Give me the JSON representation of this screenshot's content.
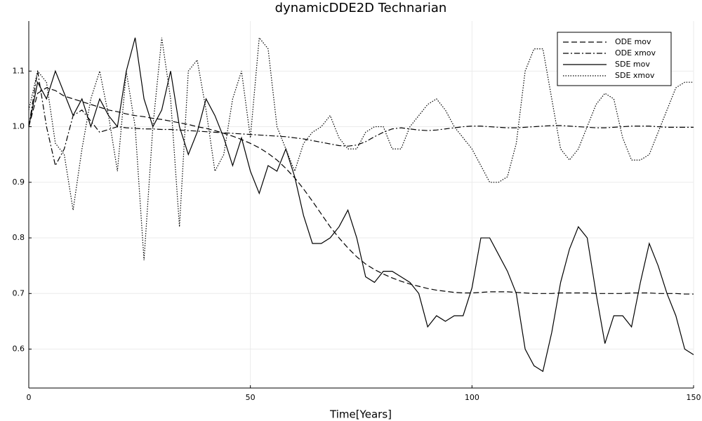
{
  "chart_data": {
    "type": "line",
    "title": "dynamicDDE2D Technarian",
    "x_label": "Time[Years]",
    "x": [
      0,
      2,
      4,
      6,
      8,
      10,
      12,
      14,
      16,
      18,
      20,
      22,
      24,
      26,
      28,
      30,
      32,
      34,
      36,
      38,
      40,
      42,
      44,
      46,
      48,
      50,
      52,
      54,
      56,
      58,
      60,
      62,
      64,
      66,
      68,
      70,
      72,
      74,
      76,
      78,
      80,
      82,
      84,
      86,
      88,
      90,
      92,
      94,
      96,
      98,
      100,
      102,
      104,
      106,
      108,
      110,
      112,
      114,
      116,
      118,
      120,
      122,
      124,
      126,
      128,
      130,
      132,
      134,
      136,
      138,
      140,
      142,
      144,
      146,
      148,
      150
    ],
    "series": [
      {
        "name": "ODE mov",
        "color": "#000000",
        "style": "dashed",
        "values": [
          1.0,
          1.06,
          1.07,
          1.065,
          1.055,
          1.05,
          1.045,
          1.04,
          1.035,
          1.03,
          1.027,
          1.023,
          1.02,
          1.018,
          1.015,
          1.013,
          1.01,
          1.007,
          1.004,
          1.0,
          0.997,
          0.993,
          0.988,
          0.983,
          0.977,
          0.97,
          0.962,
          0.952,
          0.94,
          0.925,
          0.908,
          0.888,
          0.866,
          0.843,
          0.82,
          0.8,
          0.782,
          0.766,
          0.753,
          0.743,
          0.735,
          0.728,
          0.722,
          0.717,
          0.713,
          0.709,
          0.706,
          0.704,
          0.702,
          0.701,
          0.701,
          0.702,
          0.703,
          0.703,
          0.703,
          0.702,
          0.701,
          0.7,
          0.7,
          0.7,
          0.701,
          0.701,
          0.701,
          0.701,
          0.7,
          0.7,
          0.7,
          0.7,
          0.701,
          0.701,
          0.701,
          0.7,
          0.7,
          0.7,
          0.699,
          0.699
        ]
      },
      {
        "name": "ODE xmov",
        "color": "#000000",
        "style": "dashdot",
        "values": [
          1.0,
          1.1,
          1.0,
          0.93,
          0.96,
          1.02,
          1.03,
          1.01,
          0.99,
          0.995,
          1.0,
          0.998,
          0.997,
          0.996,
          0.996,
          0.995,
          0.995,
          0.994,
          0.993,
          0.992,
          0.991,
          0.99,
          0.989,
          0.988,
          0.987,
          0.986,
          0.985,
          0.984,
          0.983,
          0.982,
          0.98,
          0.978,
          0.975,
          0.972,
          0.969,
          0.966,
          0.965,
          0.967,
          0.973,
          0.982,
          0.99,
          0.996,
          0.998,
          0.996,
          0.994,
          0.993,
          0.994,
          0.996,
          0.998,
          1.0,
          1.001,
          1.001,
          1.0,
          0.999,
          0.998,
          0.998,
          0.999,
          1.0,
          1.001,
          1.002,
          1.002,
          1.001,
          1.0,
          0.999,
          0.998,
          0.998,
          0.999,
          1.0,
          1.001,
          1.001,
          1.001,
          1.0,
          0.999,
          0.999,
          0.999,
          0.999
        ]
      },
      {
        "name": "SDE mov",
        "color": "#000000",
        "style": "solid",
        "values": [
          1.0,
          1.08,
          1.05,
          1.1,
          1.06,
          1.02,
          1.05,
          1.0,
          1.05,
          1.02,
          1.0,
          1.1,
          1.16,
          1.05,
          1.0,
          1.03,
          1.1,
          1.0,
          0.95,
          0.99,
          1.05,
          1.02,
          0.98,
          0.93,
          0.98,
          0.92,
          0.88,
          0.93,
          0.92,
          0.96,
          0.91,
          0.84,
          0.79,
          0.79,
          0.8,
          0.82,
          0.85,
          0.8,
          0.73,
          0.72,
          0.74,
          0.74,
          0.73,
          0.72,
          0.7,
          0.64,
          0.66,
          0.65,
          0.66,
          0.66,
          0.71,
          0.8,
          0.8,
          0.77,
          0.74,
          0.7,
          0.6,
          0.57,
          0.56,
          0.63,
          0.72,
          0.78,
          0.82,
          0.8,
          0.7,
          0.61,
          0.66,
          0.66,
          0.64,
          0.72,
          0.79,
          0.75,
          0.7,
          0.66,
          0.6,
          0.59
        ]
      },
      {
        "name": "SDE xmov",
        "color": "#000000",
        "style": "dotted",
        "values": [
          1.03,
          1.1,
          1.08,
          0.97,
          0.95,
          0.85,
          0.96,
          1.05,
          1.1,
          1.02,
          0.92,
          1.1,
          1.0,
          0.76,
          1.0,
          1.16,
          1.05,
          0.82,
          1.1,
          1.12,
          1.03,
          0.92,
          0.95,
          1.05,
          1.1,
          0.98,
          1.16,
          1.14,
          1.0,
          0.96,
          0.92,
          0.97,
          0.99,
          1.0,
          1.02,
          0.98,
          0.96,
          0.96,
          0.99,
          1.0,
          1.0,
          0.96,
          0.96,
          1.0,
          1.02,
          1.04,
          1.05,
          1.03,
          1.0,
          0.98,
          0.96,
          0.93,
          0.9,
          0.9,
          0.91,
          0.97,
          1.1,
          1.14,
          1.14,
          1.05,
          0.96,
          0.94,
          0.96,
          1.0,
          1.04,
          1.06,
          1.05,
          0.98,
          0.94,
          0.94,
          0.95,
          0.99,
          1.03,
          1.07,
          1.08,
          1.08
        ]
      }
    ],
    "xlim": [
      0,
      150
    ],
    "xticks": [
      0,
      50,
      100,
      150
    ],
    "ylim": [
      0.53,
      1.19
    ],
    "yticks": [
      0.6,
      0.7,
      0.8,
      0.9,
      {
        "value": 1,
        "label": "1.0"
      },
      1.1
    ],
    "grid": true,
    "legend": "top-right"
  }
}
